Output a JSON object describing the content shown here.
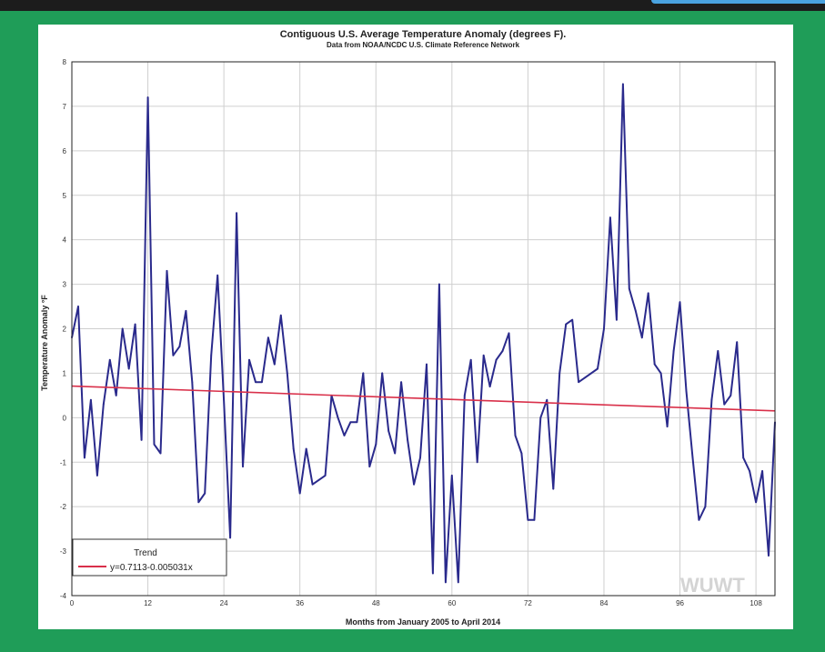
{
  "colors": {
    "background": "#1e9a57",
    "series": "#2a2a8c",
    "trend": "#d9304a",
    "grid": "#cfcfcf"
  },
  "watermark": "WUWT",
  "chart_data": {
    "type": "line",
    "title": "Contiguous U.S. Average Temperature Anomaly (degrees F).",
    "subtitle": "Data from NOAA/NCDC U.S. Climate Reference Network",
    "xlabel": "Months from January 2005 to April 2014",
    "ylabel": "Temperature Anomaly °F",
    "xlim": [
      0,
      111
    ],
    "ylim": [
      -4,
      8
    ],
    "xticks": [
      0,
      12,
      24,
      36,
      48,
      60,
      72,
      84,
      96,
      108
    ],
    "yticks": [
      -4,
      -3,
      -2,
      -1,
      0,
      1,
      2,
      3,
      4,
      5,
      6,
      7,
      8
    ],
    "grid": true,
    "legend": {
      "position": "bottom-left",
      "title": "Trend",
      "entries": [
        "y=0.7113-0.005031x"
      ]
    },
    "series": [
      {
        "x": [
          0,
          1,
          2,
          3,
          4,
          5,
          6,
          7,
          8,
          9,
          10,
          11,
          12,
          13,
          14,
          15,
          16,
          17,
          18,
          19,
          20,
          21,
          22,
          23,
          24,
          25,
          26,
          27,
          28,
          29,
          30,
          31,
          32,
          33,
          34,
          35,
          36,
          37,
          38,
          39,
          40,
          41,
          42,
          43,
          44,
          45,
          46,
          47,
          48,
          49,
          50,
          51,
          52,
          53,
          54,
          55,
          56,
          57,
          58,
          59,
          60,
          61,
          62,
          63,
          64,
          65,
          66,
          67,
          68,
          69,
          70,
          71,
          72,
          73,
          74,
          75,
          76,
          77,
          78,
          79,
          80,
          81,
          82,
          83,
          84,
          85,
          86,
          87,
          88,
          89,
          90,
          91,
          92,
          93,
          94,
          95,
          96,
          97,
          98,
          99,
          100,
          101,
          102,
          103,
          104,
          105,
          106,
          107,
          108,
          109,
          110,
          111
        ],
        "values": [
          1.8,
          2.5,
          -0.9,
          0.4,
          -1.3,
          0.3,
          1.3,
          0.5,
          2.0,
          1.1,
          2.1,
          -0.5,
          7.2,
          -0.6,
          -0.8,
          3.3,
          1.4,
          1.6,
          2.4,
          0.8,
          -1.9,
          -1.7,
          1.4,
          3.2,
          0.4,
          -2.7,
          4.6,
          -1.1,
          1.3,
          0.8,
          0.8,
          1.8,
          1.2,
          2.3,
          1.0,
          -0.7,
          -1.7,
          -0.7,
          -1.5,
          -1.4,
          -1.3,
          0.5,
          0.0,
          -0.4,
          -0.1,
          -0.1,
          1.0,
          -1.1,
          -0.6,
          1.0,
          -0.3,
          -0.8,
          0.8,
          -0.5,
          -1.5,
          -0.9,
          1.2,
          -3.5,
          3.0,
          -3.7,
          -1.3,
          -3.7,
          0.5,
          1.3,
          -1.0,
          1.4,
          0.7,
          1.3,
          1.5,
          1.9,
          -0.4,
          -0.8,
          -2.3,
          -2.3,
          0.0,
          0.4,
          -1.6,
          1.0,
          2.1,
          2.2,
          0.8,
          0.9,
          1.0,
          1.1,
          2.0,
          4.5,
          2.2,
          7.5,
          2.9,
          2.4,
          1.8,
          2.8,
          1.2,
          1.0,
          -0.2,
          1.5,
          2.6,
          0.6,
          -0.9,
          -2.3,
          -2.0,
          0.4,
          1.5,
          0.3,
          0.5,
          1.7,
          -0.9,
          -1.2,
          -1.9,
          -1.2,
          -3.1,
          -0.1
        ]
      },
      {
        "name": "Trend",
        "x": [
          0,
          111
        ],
        "values": [
          0.7113,
          0.1529
        ]
      }
    ]
  }
}
